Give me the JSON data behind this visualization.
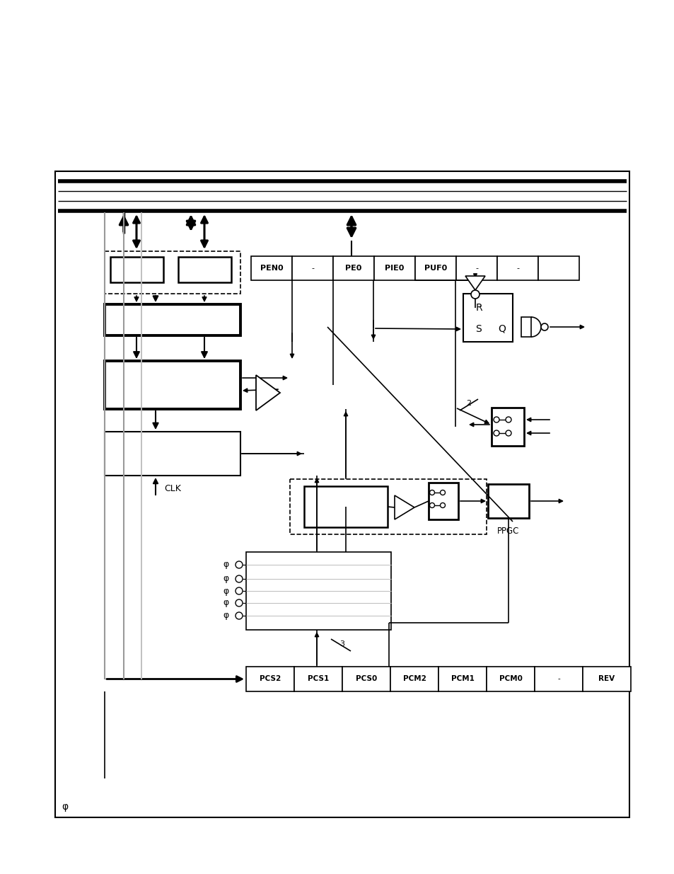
{
  "fig_width": 9.54,
  "fig_height": 12.35,
  "ppgc_reg_labels": [
    "PEN0",
    "-",
    "PE0",
    "PIE0",
    "PUF0",
    "-",
    "-",
    ""
  ],
  "pcs_reg_labels": [
    "PCS2",
    "PCS1",
    "PCS0",
    "PCM2",
    "PCM1",
    "PCM0",
    "-",
    "REV"
  ],
  "clk_label": "CLK",
  "ppgc_label": "PPGC",
  "phi_symbol": "φ",
  "rs_R": "R",
  "rs_S": "S",
  "rs_Q": "Q",
  "num2": "2",
  "num3": "3",
  "phi_bottom": "φ"
}
